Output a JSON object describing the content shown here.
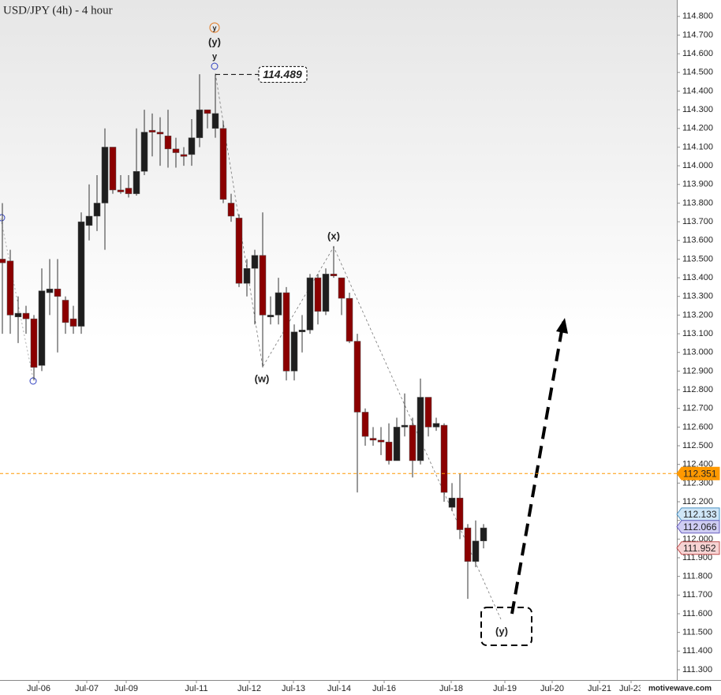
{
  "chart_data": {
    "type": "candlestick",
    "title": "USD/JPY (4h) - 4 hour",
    "x": [
      0,
      1,
      2,
      3,
      4,
      5,
      6,
      7,
      8,
      9,
      10,
      11,
      12,
      13,
      14,
      15,
      16,
      17,
      18,
      19,
      20,
      21,
      22,
      23,
      24,
      25,
      26,
      27,
      28,
      29,
      30,
      31,
      32,
      33,
      34,
      35,
      36,
      37,
      38,
      39,
      40,
      41,
      42,
      43,
      44,
      45,
      46,
      47,
      48,
      49,
      50,
      51,
      52,
      53,
      54,
      55,
      56,
      57,
      58,
      59,
      60,
      61
    ],
    "open": [
      113.5,
      113.49,
      113.19,
      113.21,
      113.18,
      112.93,
      113.32,
      113.34,
      113.28,
      113.18,
      113.14,
      113.68,
      113.73,
      113.8,
      114.1,
      113.87,
      113.88,
      113.85,
      113.97,
      114.19,
      114.18,
      114.16,
      114.09,
      114.06,
      114.06,
      114.15,
      114.3,
      114.2,
      114.2,
      113.8,
      113.72,
      113.37,
      113.45,
      113.52,
      113.19,
      113.2,
      113.32,
      112.9,
      113.11,
      113.12,
      113.4,
      113.22,
      113.42,
      113.4,
      113.29,
      113.06,
      112.68,
      112.54,
      112.53,
      112.52,
      112.42,
      112.6,
      112.61,
      112.42,
      112.76,
      112.6,
      112.61,
      112.17,
      112.22,
      112.06,
      111.88,
      111.99
    ],
    "high": [
      113.8,
      113.55,
      113.3,
      113.25,
      113.2,
      113.45,
      113.5,
      113.5,
      113.3,
      113.25,
      113.75,
      113.9,
      113.95,
      114.2,
      114.1,
      113.95,
      113.95,
      114.2,
      114.3,
      114.28,
      114.26,
      114.3,
      114.15,
      114.1,
      114.25,
      114.49,
      114.3,
      114.489,
      114.24,
      113.85,
      113.74,
      113.5,
      113.55,
      113.75,
      113.3,
      113.4,
      113.35,
      113.15,
      113.2,
      113.42,
      113.42,
      113.45,
      113.57,
      113.4,
      113.32,
      113.1,
      112.7,
      112.6,
      112.6,
      112.62,
      112.65,
      112.78,
      112.65,
      112.86,
      112.76,
      112.65,
      112.62,
      112.3,
      112.35,
      112.08,
      112.1,
      112.08
    ],
    "low": [
      113.1,
      113.1,
      113.05,
      113.1,
      112.85,
      112.9,
      113.2,
      113.0,
      113.1,
      113.1,
      113.1,
      113.6,
      113.65,
      113.55,
      113.85,
      113.85,
      113.83,
      113.84,
      113.95,
      114.05,
      114.0,
      113.99,
      113.99,
      114.0,
      114.0,
      114.1,
      114.2,
      114.15,
      113.8,
      113.7,
      113.35,
      113.3,
      113.15,
      112.92,
      113.15,
      113.15,
      112.85,
      112.85,
      113.0,
      113.1,
      113.15,
      113.2,
      113.4,
      113.2,
      113.05,
      112.25,
      112.5,
      112.5,
      112.45,
      112.4,
      112.42,
      112.55,
      112.33,
      112.4,
      112.55,
      112.58,
      112.2,
      112.15,
      112.0,
      111.68,
      111.85,
      111.95
    ],
    "close": [
      113.48,
      113.2,
      113.21,
      113.18,
      112.92,
      113.33,
      113.34,
      113.3,
      113.16,
      113.14,
      113.7,
      113.73,
      113.8,
      114.1,
      113.87,
      113.86,
      113.85,
      113.97,
      114.18,
      114.18,
      114.17,
      114.09,
      114.07,
      114.05,
      114.15,
      114.3,
      114.28,
      114.28,
      113.82,
      113.73,
      113.37,
      113.45,
      113.52,
      113.2,
      113.2,
      113.32,
      112.9,
      113.11,
      113.12,
      113.4,
      113.22,
      113.42,
      113.41,
      113.29,
      113.06,
      112.68,
      112.55,
      112.53,
      112.52,
      112.42,
      112.6,
      112.61,
      112.42,
      112.76,
      112.6,
      112.62,
      112.25,
      112.22,
      112.05,
      111.88,
      111.99,
      112.06
    ],
    "up_color": "#1e1e1e",
    "down_color": "#8b0000",
    "xlim": [
      -0.3,
      85.5
    ],
    "xticks": [
      {
        "value": 4.6,
        "label": "Jul-06"
      },
      {
        "value": 10.7,
        "label": "Jul-07"
      },
      {
        "value": 15.7,
        "label": "Jul-09"
      },
      {
        "value": 24.6,
        "label": "Jul-11"
      },
      {
        "value": 31.3,
        "label": "Jul-12"
      },
      {
        "value": 36.9,
        "label": "Jul-13"
      },
      {
        "value": 42.7,
        "label": "Jul-14"
      },
      {
        "value": 48.4,
        "label": "Jul-16"
      },
      {
        "value": 56.9,
        "label": "Jul-18"
      },
      {
        "value": 63.7,
        "label": "Jul-19"
      },
      {
        "value": 69.7,
        "label": "Jul-20"
      },
      {
        "value": 75.7,
        "label": "Jul-21"
      },
      {
        "value": 79.7,
        "label": "Jul-23"
      }
    ],
    "ylim": [
      111.245,
      114.888
    ],
    "yticks": [
      {
        "value": 111.3,
        "label": "111.300"
      },
      {
        "value": 111.4,
        "label": "111.400"
      },
      {
        "value": 111.5,
        "label": "111.500"
      },
      {
        "value": 111.6,
        "label": "111.600"
      },
      {
        "value": 111.7,
        "label": "111.700"
      },
      {
        "value": 111.8,
        "label": "111.800"
      },
      {
        "value": 111.9,
        "label": "111.900"
      },
      {
        "value": 112.0,
        "label": "112.000"
      },
      {
        "value": 112.1,
        "label": "112.100"
      },
      {
        "value": 112.2,
        "label": "112.200"
      },
      {
        "value": 112.3,
        "label": "112.300"
      },
      {
        "value": 112.4,
        "label": "112.400"
      },
      {
        "value": 112.5,
        "label": "112.500"
      },
      {
        "value": 112.6,
        "label": "112.600"
      },
      {
        "value": 112.7,
        "label": "112.700"
      },
      {
        "value": 112.8,
        "label": "112.800"
      },
      {
        "value": 112.9,
        "label": "112.900"
      },
      {
        "value": 113.0,
        "label": "113.000"
      },
      {
        "value": 113.1,
        "label": "113.100"
      },
      {
        "value": 113.2,
        "label": "113.200"
      },
      {
        "value": 113.3,
        "label": "113.300"
      },
      {
        "value": 113.4,
        "label": "113.400"
      },
      {
        "value": 113.5,
        "label": "113.500"
      },
      {
        "value": 113.6,
        "label": "113.600"
      },
      {
        "value": 113.7,
        "label": "113.700"
      },
      {
        "value": 113.8,
        "label": "113.800"
      },
      {
        "value": 113.9,
        "label": "113.900"
      },
      {
        "value": 114.0,
        "label": "114.000"
      },
      {
        "value": 114.1,
        "label": "114.100"
      },
      {
        "value": 114.2,
        "label": "114.200"
      },
      {
        "value": 114.3,
        "label": "114.300"
      },
      {
        "value": 114.4,
        "label": "114.400"
      },
      {
        "value": 114.5,
        "label": "114.500"
      },
      {
        "value": 114.6,
        "label": "114.600"
      },
      {
        "value": 114.7,
        "label": "114.700"
      },
      {
        "value": 114.8,
        "label": "114.800"
      }
    ],
    "high_marker": {
      "value": 114.489,
      "label": "114.489"
    },
    "current_price": {
      "value": 112.351,
      "label": "112.351",
      "color": "#ff9900"
    },
    "price_tags": [
      {
        "value": 112.133,
        "label": "112.133",
        "color": "#cfe6f7"
      },
      {
        "value": 112.066,
        "label": "112.066",
        "color": "#cfcdf3"
      },
      {
        "value": 111.952,
        "label": "111.952",
        "color": "#f6d3d3"
      }
    ],
    "annotations": [
      "y",
      "(y)",
      "y",
      "(x)",
      "(w)",
      "(y)"
    ],
    "watermark": "motivewave.com"
  }
}
